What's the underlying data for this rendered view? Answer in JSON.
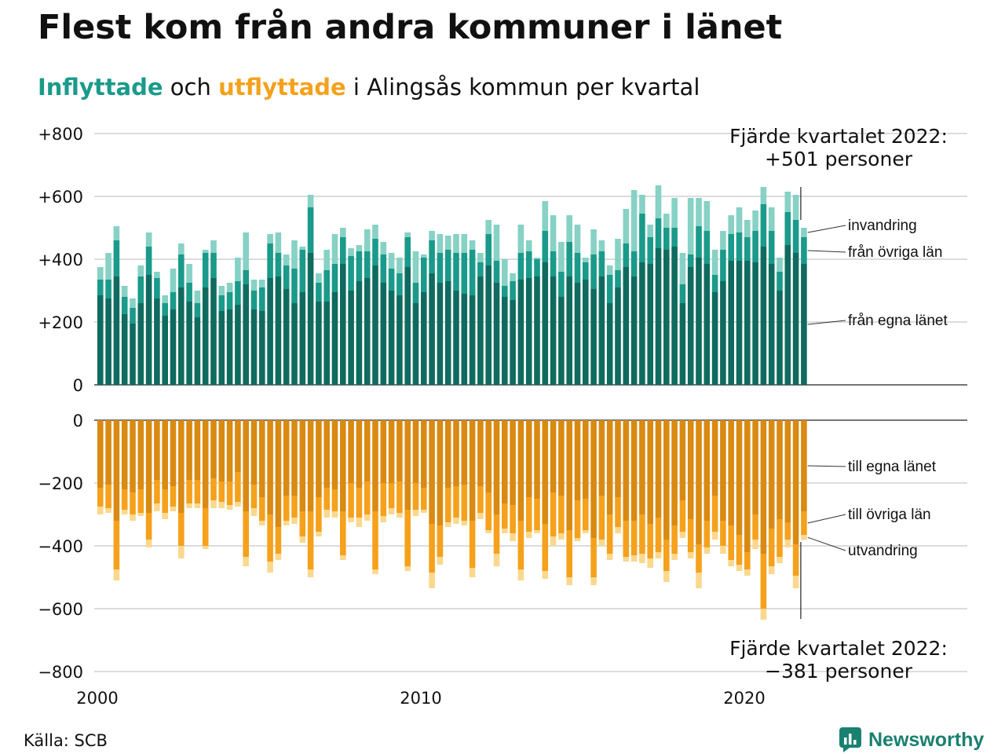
{
  "title": "Flest kom från andra kommuner i länet",
  "subtitle": {
    "part1": "Inflyttade",
    "part2": " och ",
    "part3": "utflyttade",
    "part4": " i Alingsås kommun per kvartal"
  },
  "source": "Källa: SCB",
  "brand": "Newsworthy",
  "colors": {
    "in_own": "#0f6b5f",
    "in_other": "#1a9a8a",
    "in_abroad": "#87d1c5",
    "out_own": "#d98a12",
    "out_other": "#f5a11c",
    "out_abroad": "#fbd88e",
    "brand": "#1a8070"
  },
  "chart_data": {
    "type": "bar",
    "stacked": true,
    "x_start": "2000 Q1",
    "x_end": "2022 Q4",
    "x_ticks": [
      "2000",
      "2010",
      "2020"
    ],
    "top_panel": {
      "y_ticks": [
        "+800",
        "+600",
        "+400",
        "+200",
        "0"
      ],
      "ylim": [
        0,
        800
      ],
      "annotation": [
        "Fjärde kvartalet 2022:",
        "+501 personer"
      ],
      "series_labels": [
        "invandring",
        "från övriga län",
        "från egna länet"
      ],
      "series": [
        {
          "name": "från egna länet",
          "values": [
            285,
            275,
            345,
            225,
            195,
            260,
            350,
            275,
            220,
            240,
            310,
            265,
            215,
            310,
            340,
            235,
            240,
            255,
            320,
            240,
            235,
            340,
            345,
            305,
            260,
            295,
            420,
            265,
            265,
            295,
            385,
            300,
            330,
            340,
            380,
            325,
            300,
            285,
            375,
            260,
            295,
            355,
            325,
            330,
            300,
            290,
            285,
            345,
            380,
            325,
            280,
            270,
            335,
            340,
            345,
            390,
            345,
            280,
            345,
            325,
            335,
            305,
            345,
            260,
            310,
            375,
            345,
            390,
            385,
            435,
            430,
            440,
            260,
            375,
            405,
            385,
            295,
            330,
            395,
            395,
            395,
            390,
            440,
            385,
            300,
            445,
            420,
            385
          ]
        },
        {
          "name": "från övriga län",
          "values": [
            50,
            60,
            115,
            55,
            50,
            85,
            90,
            65,
            40,
            55,
            105,
            60,
            45,
            110,
            80,
            50,
            55,
            75,
            45,
            60,
            75,
            110,
            75,
            75,
            110,
            135,
            145,
            60,
            100,
            90,
            85,
            110,
            95,
            85,
            85,
            90,
            70,
            70,
            95,
            65,
            110,
            105,
            95,
            100,
            120,
            130,
            145,
            45,
            100,
            70,
            35,
            60,
            85,
            85,
            55,
            100,
            80,
            80,
            110,
            95,
            55,
            110,
            80,
            90,
            55,
            75,
            80,
            155,
            85,
            95,
            70,
            60,
            60,
            40,
            100,
            105,
            55,
            100,
            85,
            90,
            75,
            100,
            135,
            105,
            60,
            105,
            105,
            85
          ]
        },
        {
          "name": "invandring",
          "values": [
            40,
            85,
            45,
            35,
            30,
            35,
            45,
            20,
            25,
            75,
            35,
            60,
            40,
            10,
            40,
            30,
            30,
            75,
            120,
            35,
            25,
            30,
            65,
            35,
            90,
            10,
            40,
            30,
            65,
            95,
            30,
            25,
            20,
            70,
            45,
            40,
            50,
            50,
            15,
            100,
            10,
            30,
            60,
            45,
            60,
            60,
            30,
            30,
            45,
            115,
            85,
            25,
            90,
            35,
            5,
            95,
            115,
            95,
            85,
            90,
            15,
            80,
            35,
            30,
            100,
            110,
            195,
            60,
            40,
            105,
            45,
            95,
            100,
            180,
            90,
            95,
            80,
            60,
            60,
            80,
            55,
            65,
            55,
            75,
            45,
            65,
            80,
            30
          ]
        }
      ]
    },
    "bottom_panel": {
      "y_ticks": [
        "0",
        "−200",
        "−400",
        "−600",
        "−800"
      ],
      "ylim": [
        -800,
        0
      ],
      "annotation": [
        "Fjärde kvartalet 2022:",
        "−381 personer"
      ],
      "series_labels": [
        "till egna länet",
        "till övriga län",
        "utvandring"
      ],
      "series": [
        {
          "name": "till egna länet",
          "values": [
            -215,
            -205,
            -320,
            -220,
            -230,
            -220,
            -295,
            -190,
            -220,
            -210,
            -295,
            -190,
            -190,
            -280,
            -185,
            -195,
            -195,
            -165,
            -290,
            -205,
            -245,
            -300,
            -340,
            -240,
            -240,
            -290,
            -290,
            -245,
            -215,
            -220,
            -290,
            -200,
            -215,
            -195,
            -290,
            -200,
            -200,
            -195,
            -285,
            -200,
            -215,
            -330,
            -335,
            -215,
            -210,
            -205,
            -320,
            -210,
            -230,
            -300,
            -265,
            -270,
            -320,
            -245,
            -250,
            -330,
            -230,
            -240,
            -350,
            -255,
            -250,
            -375,
            -240,
            -300,
            -245,
            -320,
            -320,
            -300,
            -330,
            -310,
            -380,
            -335,
            -255,
            -315,
            -395,
            -320,
            -240,
            -320,
            -335,
            -365,
            -420,
            -300,
            -425,
            -345,
            -315,
            -325,
            -395,
            -290
          ]
        },
        {
          "name": "till övriga län",
          "values": [
            -60,
            -75,
            -155,
            -65,
            -70,
            -75,
            -85,
            -75,
            -75,
            -65,
            -105,
            -75,
            -75,
            -120,
            -70,
            -65,
            -75,
            -95,
            -145,
            -75,
            -75,
            -150,
            -85,
            -80,
            -70,
            -80,
            -185,
            -110,
            -70,
            -70,
            -140,
            -110,
            -95,
            -105,
            -185,
            -105,
            -80,
            -100,
            -180,
            -85,
            -70,
            -155,
            -100,
            -110,
            -100,
            -115,
            -150,
            -85,
            -120,
            -125,
            -80,
            -90,
            -155,
            -110,
            -100,
            -150,
            -140,
            -120,
            -150,
            -120,
            -100,
            -125,
            -140,
            -125,
            -95,
            -115,
            -110,
            -125,
            -110,
            -110,
            -100,
            -90,
            -100,
            -105,
            -90,
            -85,
            -115,
            -80,
            -110,
            -95,
            -55,
            -80,
            -175,
            -120,
            -120,
            -55,
            -100,
            -75
          ]
        },
        {
          "name": "utvandring",
          "values": [
            -25,
            -15,
            -35,
            -15,
            -20,
            -10,
            -25,
            -25,
            -20,
            -15,
            -40,
            -15,
            -15,
            -10,
            -25,
            -20,
            -15,
            -15,
            -30,
            -25,
            -15,
            -35,
            -20,
            -15,
            -20,
            -20,
            -25,
            -15,
            -25,
            -20,
            -15,
            -15,
            -30,
            -20,
            -15,
            -20,
            -20,
            -15,
            -15,
            -20,
            -10,
            -50,
            -25,
            -15,
            -20,
            -15,
            -30,
            -20,
            -10,
            -40,
            -15,
            -25,
            -35,
            -20,
            -10,
            -25,
            -30,
            -20,
            -25,
            -10,
            -10,
            -25,
            -20,
            -20,
            -20,
            -15,
            -20,
            -30,
            -30,
            -20,
            -35,
            -20,
            -20,
            -20,
            -50,
            -20,
            -25,
            -25,
            -20,
            -20,
            -20,
            -30,
            -35,
            -25,
            -20,
            -25,
            -40,
            -16
          ]
        }
      ]
    }
  }
}
